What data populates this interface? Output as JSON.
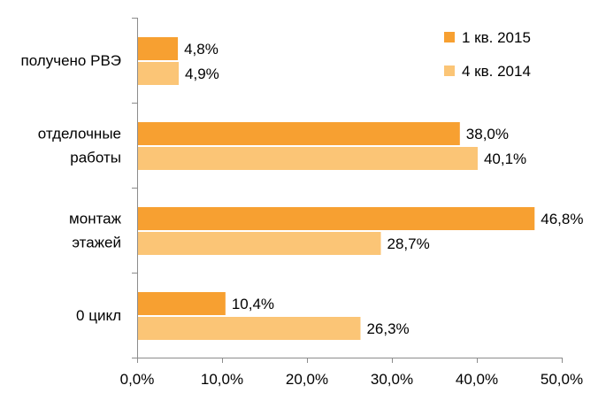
{
  "chart_data": {
    "type": "bar",
    "orientation": "horizontal",
    "categories": [
      [
        "получено РВЭ"
      ],
      [
        "отделочные",
        "работы"
      ],
      [
        "монтаж",
        "этажей"
      ],
      [
        "0 цикл"
      ]
    ],
    "series": [
      {
        "name": "1 кв. 2015",
        "color": "#f7a031",
        "values": [
          4.8,
          38.0,
          46.8,
          10.4
        ],
        "labels": [
          "4,8%",
          "38,0%",
          "46,8%",
          "10,4%"
        ]
      },
      {
        "name": "4 кв. 2014",
        "color": "#fbc576",
        "values": [
          4.9,
          40.1,
          28.7,
          26.3
        ],
        "labels": [
          "4,9%",
          "40,1%",
          "28,7%",
          "26,3%"
        ]
      }
    ],
    "xlim": [
      0,
      50
    ],
    "xticks": [
      0,
      10,
      20,
      30,
      40,
      50
    ],
    "xtick_labels": [
      "0,0%",
      "10,0%",
      "20,0%",
      "30,0%",
      "40,0%",
      "50,0%"
    ],
    "grid": false,
    "legend_position": "top-right"
  }
}
